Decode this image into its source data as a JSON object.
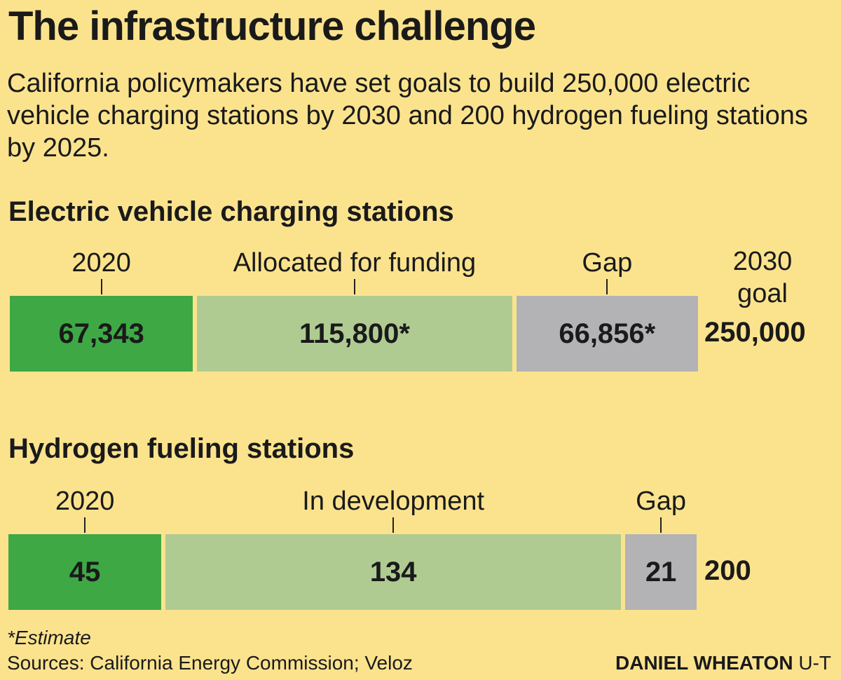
{
  "header": {
    "title": "The infrastructure challenge",
    "subtitle": "California policymakers have set goals to build 250,000 electric vehicle charging stations by 2030 and 200 hydrogen fueling stations by 2025."
  },
  "colors": {
    "background": "#fbe38e",
    "current": "#3ea845",
    "planned": "#b0cb92",
    "gap": "#b3b3b5"
  },
  "chart_data": [
    {
      "type": "bar",
      "orientation": "horizontal-stacked",
      "title": "Electric vehicle charging stations",
      "goal_label": "2030 goal",
      "goal_value": 250000,
      "goal_display": "250,000",
      "segments": [
        {
          "name": "2020",
          "value": 67343,
          "display": "67,343",
          "color": "#3ea845"
        },
        {
          "name": "Allocated for funding",
          "value": 115800,
          "display": "115,800*",
          "color": "#b0cb92"
        },
        {
          "name": "Gap",
          "value": 66856,
          "display": "66,856*",
          "color": "#b3b3b5"
        }
      ]
    },
    {
      "type": "bar",
      "orientation": "horizontal-stacked",
      "title": "Hydrogen fueling stations",
      "goal_label": "",
      "goal_value": 200,
      "goal_display": "200",
      "segments": [
        {
          "name": "2020",
          "value": 45,
          "display": "45",
          "color": "#3ea845"
        },
        {
          "name": "In development",
          "value": 134,
          "display": "134",
          "color": "#b0cb92"
        },
        {
          "name": "Gap",
          "value": 21,
          "display": "21",
          "color": "#b3b3b5"
        }
      ]
    }
  ],
  "footer": {
    "footnote": "*Estimate",
    "sources": "Sources: California Energy Commission; Veloz",
    "credit_name": "DANIEL WHEATON",
    "credit_org": "U-T"
  }
}
